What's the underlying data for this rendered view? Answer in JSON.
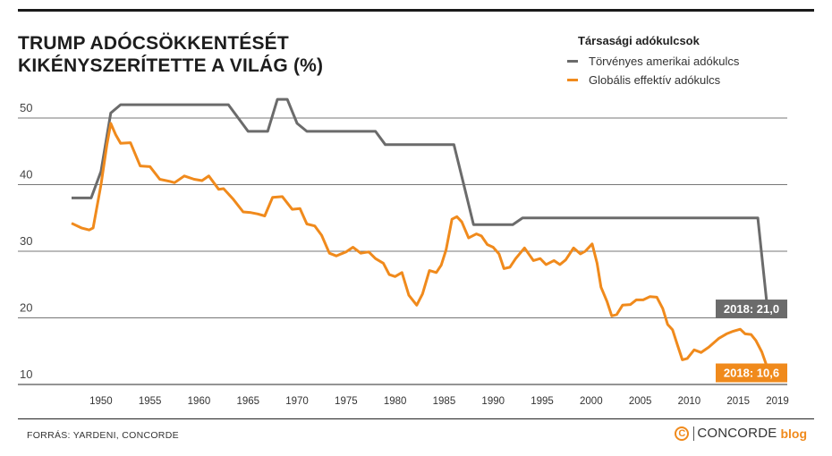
{
  "title_line1": "TRUMP ADÓCSÖKKENTÉSÉT",
  "title_line2": "KIKÉNYSZERÍTETTE A VILÁG (%)",
  "legend": {
    "title": "Társasági adókulcsok",
    "items": [
      {
        "label": "Törvényes amerikai adókulcs",
        "color": "#6b6b6b"
      },
      {
        "label": "Globális effektív adókulcs",
        "color": "#f08a1c"
      }
    ]
  },
  "source": "FORRÁS: YARDENI, CONCORDE",
  "brand": {
    "symbol": "C",
    "name": "CONCORDE",
    "suffix": "blog"
  },
  "chart_data": {
    "type": "line",
    "title": "TRUMP ADÓCSÖKKENTÉSÉT KIKÉNYSZERÍTETTE A VILÁG (%)",
    "xlabel": "",
    "ylabel": "",
    "xlim": [
      1947,
      2020
    ],
    "ylim": [
      10,
      50
    ],
    "x_ticks": [
      1950,
      1955,
      1960,
      1965,
      1970,
      1975,
      1980,
      1985,
      1990,
      1995,
      2000,
      2005,
      2010,
      2015,
      2019
    ],
    "y_ticks": [
      10,
      20,
      30,
      40,
      50
    ],
    "grid": "horizontal",
    "legend_position": "top-right",
    "series": [
      {
        "name": "Törvényes amerikai adókulcs",
        "color": "#6b6b6b",
        "points": [
          [
            1947,
            38
          ],
          [
            1949,
            38
          ],
          [
            1950,
            42
          ],
          [
            1951,
            50.75
          ],
          [
            1952,
            52
          ],
          [
            1963,
            52
          ],
          [
            1964,
            50
          ],
          [
            1965,
            48
          ],
          [
            1967,
            48
          ],
          [
            1968,
            52.8
          ],
          [
            1969,
            52.8
          ],
          [
            1970,
            49.2
          ],
          [
            1971,
            48
          ],
          [
            1978,
            48
          ],
          [
            1979,
            46
          ],
          [
            1986,
            46
          ],
          [
            1987,
            40
          ],
          [
            1988,
            34
          ],
          [
            1992,
            34
          ],
          [
            1993,
            35
          ],
          [
            2017,
            35
          ],
          [
            2018,
            21
          ]
        ],
        "end_label": "2018: 21,0"
      },
      {
        "name": "Globális effektív adókulcs",
        "color": "#f08a1c",
        "points": [
          [
            1947,
            34.2
          ],
          [
            1948,
            33.5
          ],
          [
            1948.8,
            33.2
          ],
          [
            1949.2,
            33.5
          ],
          [
            1950,
            40
          ],
          [
            1950.6,
            46
          ],
          [
            1951,
            49.2
          ],
          [
            1951.5,
            47.5
          ],
          [
            1952,
            46.2
          ],
          [
            1953,
            46.3
          ],
          [
            1954,
            42.8
          ],
          [
            1955,
            42.7
          ],
          [
            1956,
            40.8
          ],
          [
            1957,
            40.5
          ],
          [
            1957.5,
            40.3
          ],
          [
            1958.5,
            41.3
          ],
          [
            1959.5,
            40.8
          ],
          [
            1960.3,
            40.6
          ],
          [
            1961,
            41.3
          ],
          [
            1962,
            39.3
          ],
          [
            1962.5,
            39.4
          ],
          [
            1963.5,
            37.8
          ],
          [
            1964.5,
            35.9
          ],
          [
            1965.3,
            35.8
          ],
          [
            1966,
            35.6
          ],
          [
            1966.7,
            35.3
          ],
          [
            1967.5,
            38.1
          ],
          [
            1968.5,
            38.2
          ],
          [
            1969.5,
            36.3
          ],
          [
            1970.3,
            36.4
          ],
          [
            1971,
            34.1
          ],
          [
            1971.8,
            33.8
          ],
          [
            1972.5,
            32.4
          ],
          [
            1973.3,
            29.7
          ],
          [
            1974,
            29.3
          ],
          [
            1975,
            29.9
          ],
          [
            1975.7,
            30.6
          ],
          [
            1976.5,
            29.7
          ],
          [
            1977.3,
            29.9
          ],
          [
            1978,
            28.9
          ],
          [
            1978.8,
            28.2
          ],
          [
            1979.4,
            26.5
          ],
          [
            1980,
            26.2
          ],
          [
            1980.7,
            26.8
          ],
          [
            1981.4,
            23.4
          ],
          [
            1982.2,
            21.9
          ],
          [
            1982.8,
            23.6
          ],
          [
            1983.5,
            27.1
          ],
          [
            1984.2,
            26.8
          ],
          [
            1984.7,
            27.9
          ],
          [
            1985.2,
            30.2
          ],
          [
            1985.8,
            34.8
          ],
          [
            1986.3,
            35.2
          ],
          [
            1986.8,
            34.4
          ],
          [
            1987.5,
            32.0
          ],
          [
            1988.3,
            32.6
          ],
          [
            1988.8,
            32.3
          ],
          [
            1989.4,
            31.0
          ],
          [
            1990,
            30.6
          ],
          [
            1990.6,
            29.6
          ],
          [
            1991.1,
            27.4
          ],
          [
            1991.7,
            27.6
          ],
          [
            1992.3,
            28.9
          ],
          [
            1993.2,
            30.5
          ],
          [
            1994.1,
            28.6
          ],
          [
            1994.8,
            28.9
          ],
          [
            1995.4,
            28.0
          ],
          [
            1996.2,
            28.6
          ],
          [
            1996.8,
            28.0
          ],
          [
            1997.4,
            28.7
          ],
          [
            1998.2,
            30.5
          ],
          [
            1998.9,
            29.6
          ],
          [
            1999.4,
            30.0
          ],
          [
            2000.1,
            31.1
          ],
          [
            2000.6,
            28.2
          ],
          [
            2001,
            24.6
          ],
          [
            2001.6,
            22.5
          ],
          [
            2002.1,
            20.3
          ],
          [
            2002.6,
            20.5
          ],
          [
            2003.2,
            21.9
          ],
          [
            2004,
            22.0
          ],
          [
            2004.6,
            22.7
          ],
          [
            2005.3,
            22.7
          ],
          [
            2006,
            23.2
          ],
          [
            2006.7,
            23.1
          ],
          [
            2007.3,
            21.4
          ],
          [
            2007.8,
            19.0
          ],
          [
            2008.3,
            18.2
          ],
          [
            2008.8,
            15.9
          ],
          [
            2009.3,
            13.7
          ],
          [
            2009.8,
            13.9
          ],
          [
            2010.5,
            15.2
          ],
          [
            2011.2,
            14.8
          ],
          [
            2012,
            15.6
          ],
          [
            2013,
            16.9
          ],
          [
            2013.8,
            17.6
          ],
          [
            2014.5,
            18.0
          ],
          [
            2015.2,
            18.3
          ],
          [
            2015.7,
            17.6
          ],
          [
            2016.3,
            17.5
          ],
          [
            2016.8,
            16.6
          ],
          [
            2017.4,
            14.9
          ],
          [
            2017.9,
            12.8
          ],
          [
            2018.3,
            10.6
          ]
        ],
        "end_label": "2018: 10,6"
      }
    ]
  }
}
